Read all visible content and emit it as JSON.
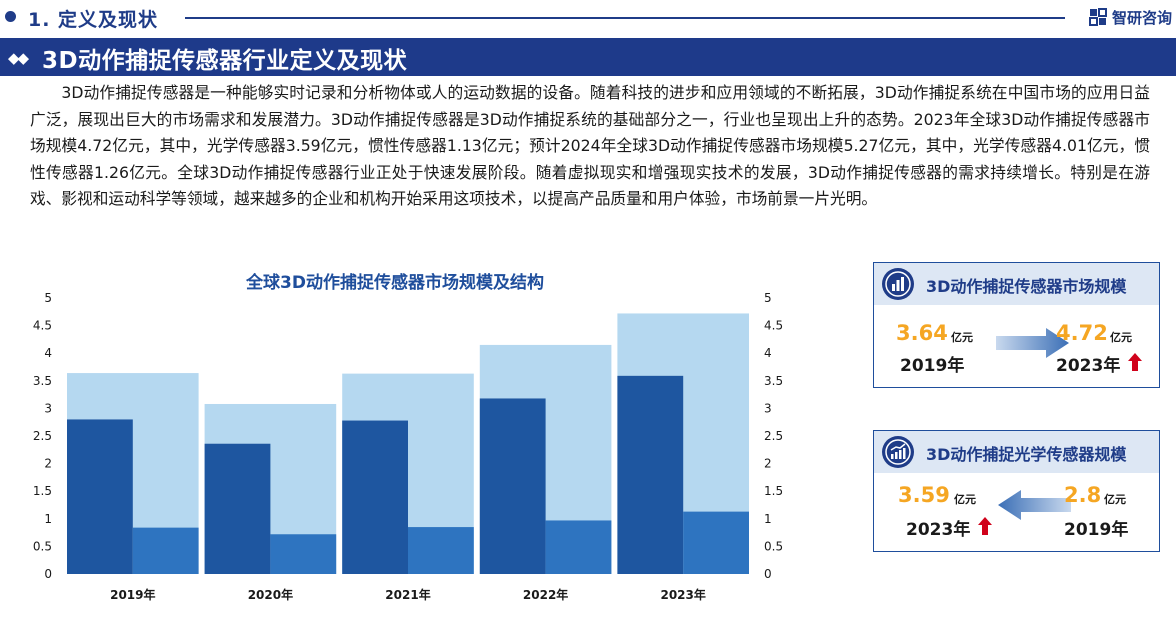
{
  "section": {
    "title": "1. 定义及现状"
  },
  "brand": {
    "name": "智研咨询"
  },
  "heading": {
    "title": "3D动作捕捉传感器行业定义及现状"
  },
  "paragraph": "3D动作捕捉传感器是一种能够实时记录和分析物体或人的运动数据的设备。随着科技的进步和应用领域的不断拓展，3D动作捕捉系统在中国市场的应用日益广泛，展现出巨大的市场需求和发展潜力。3D动作捕捉传感器是3D动作捕捉系统的基础部分之一，行业也呈现出上升的态势。2023年全球3D动作捕捉传感器市场规模4.72亿元，其中，光学传感器3.59亿元，惯性传感器1.13亿元；预计2024年全球3D动作捕捉传感器市场规模5.27亿元，其中，光学传感器4.01亿元，惯性传感器1.26亿元。全球3D动作捕捉传感器行业正处于快速发展阶段。随着虚拟现实和增强现实技术的发展，3D动作捕捉传感器的需求持续增长。特别是在游戏、影视和运动科学等领域，越来越多的企业和机构开始采用这项技术，以提高产品质量和用户体验，市场前景一片光明。",
  "chart_data": {
    "type": "bar",
    "title": "全球3D动作捕捉传感器市场规模及结构",
    "categories": [
      "2019年",
      "2020年",
      "2021年",
      "2022年",
      "2023年"
    ],
    "total": [
      3.64,
      3.08,
      3.63,
      4.15,
      4.72
    ],
    "series": [
      {
        "values": [
          2.8,
          2.36,
          2.78,
          3.18,
          3.59
        ]
      },
      {
        "values": [
          0.84,
          0.72,
          0.85,
          0.97,
          1.13
        ]
      }
    ],
    "ylim": [
      0,
      5
    ],
    "yticks": [
      "0",
      "0.5",
      "1",
      "1.5",
      "2",
      "2.5",
      "3",
      "3.5",
      "4",
      "4.5",
      "5"
    ],
    "colors": {
      "total": "#b5d8f0",
      "optical": "#1e56a0",
      "inertial": "#2e74c0"
    }
  },
  "card_market": {
    "title": "3D动作捕捉传感器市场规模",
    "left": {
      "value": "3.64",
      "unit": "亿元",
      "year": "2019年"
    },
    "right": {
      "value": "4.72",
      "unit": "亿元",
      "year": "2023年"
    },
    "icon": "bar-chart-icon"
  },
  "card_optical": {
    "title": "3D动作捕捉光学传感器规模",
    "left": {
      "value": "3.59",
      "unit": "亿元",
      "year": "2023年"
    },
    "right": {
      "value": "2.8",
      "unit": "亿元",
      "year": "2019年"
    },
    "icon": "growth-chart-icon"
  },
  "colors": {
    "brand": "#1f3c88",
    "accent": "#f5a623",
    "up": "#d0021b"
  }
}
